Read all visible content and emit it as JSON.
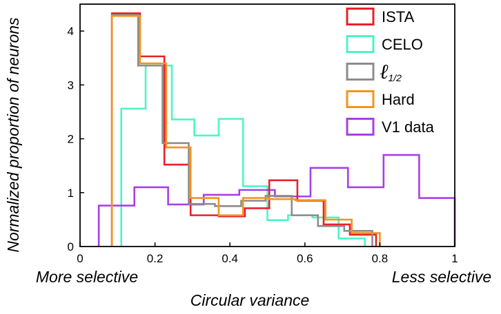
{
  "chart_data": {
    "type": "histogram",
    "title": "",
    "xlabel": "Circular variance",
    "ylabel": "Normalized proportion of neurons",
    "x_left_annotation": "More selective",
    "x_right_annotation": "Less selective",
    "xlim": [
      0,
      1
    ],
    "ylim": [
      0,
      4.5
    ],
    "xticks": [
      "0",
      "0.2",
      "0.4",
      "0.6",
      "0.8",
      "1"
    ],
    "xtick_values": [
      0,
      0.2,
      0.4,
      0.6,
      0.8,
      1
    ],
    "yticks": [
      "0",
      "1",
      "2",
      "3",
      "4"
    ],
    "ytick_values": [
      0,
      1,
      2,
      3,
      4
    ],
    "grid": false,
    "legend_position": "top-right",
    "series": [
      {
        "name": "ISTA",
        "color": "#e8202a",
        "edges": [
          0.085,
          0.16,
          0.225,
          0.295,
          0.37,
          0.44,
          0.505,
          0.58,
          0.65,
          0.72,
          0.79
        ],
        "values": [
          4.33,
          3.53,
          1.52,
          0.58,
          0.56,
          0.71,
          1.23,
          0.85,
          0.41,
          0.22
        ]
      },
      {
        "name": "CELO",
        "color": "#4cf5c4",
        "edges": [
          0.11,
          0.175,
          0.245,
          0.305,
          0.37,
          0.435,
          0.5,
          0.555,
          0.62,
          0.69,
          0.76
        ],
        "values": [
          2.56,
          3.36,
          2.36,
          2.06,
          2.37,
          1.12,
          0.49,
          0.58,
          0.54,
          0.15
        ]
      },
      {
        "name": "ℓ1/2",
        "color": "#8c8c8c",
        "edges": [
          0.085,
          0.155,
          0.22,
          0.29,
          0.36,
          0.43,
          0.495,
          0.565,
          0.635,
          0.705,
          0.78
        ],
        "values": [
          4.3,
          3.36,
          1.92,
          0.79,
          0.75,
          0.85,
          0.94,
          0.58,
          0.38,
          0.29
        ]
      },
      {
        "name": "Hard",
        "color": "#f2941f",
        "edges": [
          0.085,
          0.16,
          0.23,
          0.295,
          0.37,
          0.435,
          0.505,
          0.575,
          0.655,
          0.725,
          0.8
        ],
        "values": [
          4.28,
          3.4,
          1.84,
          0.9,
          0.58,
          0.9,
          0.88,
          0.86,
          0.5,
          0.25
        ]
      },
      {
        "name": "V1 data",
        "color": "#a83ee8",
        "edges": [
          0.05,
          0.145,
          0.235,
          0.33,
          0.425,
          0.52,
          0.615,
          0.715,
          0.81,
          0.905,
          1.0
        ],
        "values": [
          0.76,
          1.1,
          0.78,
          0.96,
          1.05,
          0.93,
          1.46,
          1.1,
          1.7,
          0.9
        ]
      }
    ]
  }
}
